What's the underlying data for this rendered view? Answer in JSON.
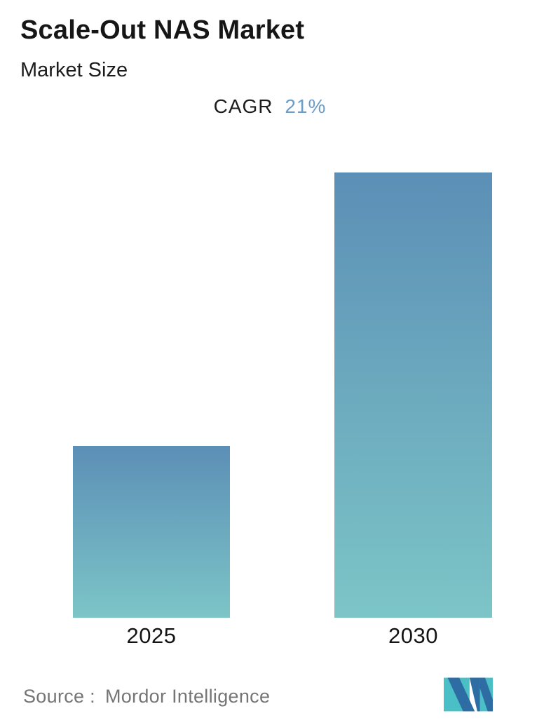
{
  "header": {
    "title": "Scale-Out NAS Market",
    "subtitle": "Market Size"
  },
  "annotation": {
    "label": "CAGR",
    "value": "21%",
    "value_color": "#6C9DC8"
  },
  "chart_data": {
    "type": "bar",
    "title": "Scale-Out NAS Market",
    "subtitle": "Market Size",
    "annotation": "CAGR 21%",
    "categories": [
      "2025",
      "2030"
    ],
    "series": [
      {
        "name": "Market Size (relative, no numeric axis shown)",
        "values": [
          1.0,
          2.59
        ]
      }
    ],
    "xlabel": "",
    "ylabel": "",
    "value_axis_visible": false,
    "grid": false,
    "legend": "none",
    "bar_gradient_top": "#5C8FB6",
    "bar_gradient_bottom": "#7CC5C7"
  },
  "footer": {
    "source_label": "Source :",
    "source_value": "Mordor Intelligence",
    "logo": "mordor-intelligence-logo",
    "logo_colors": {
      "teal": "#4ABFC6",
      "blue": "#2E6DA4"
    }
  }
}
